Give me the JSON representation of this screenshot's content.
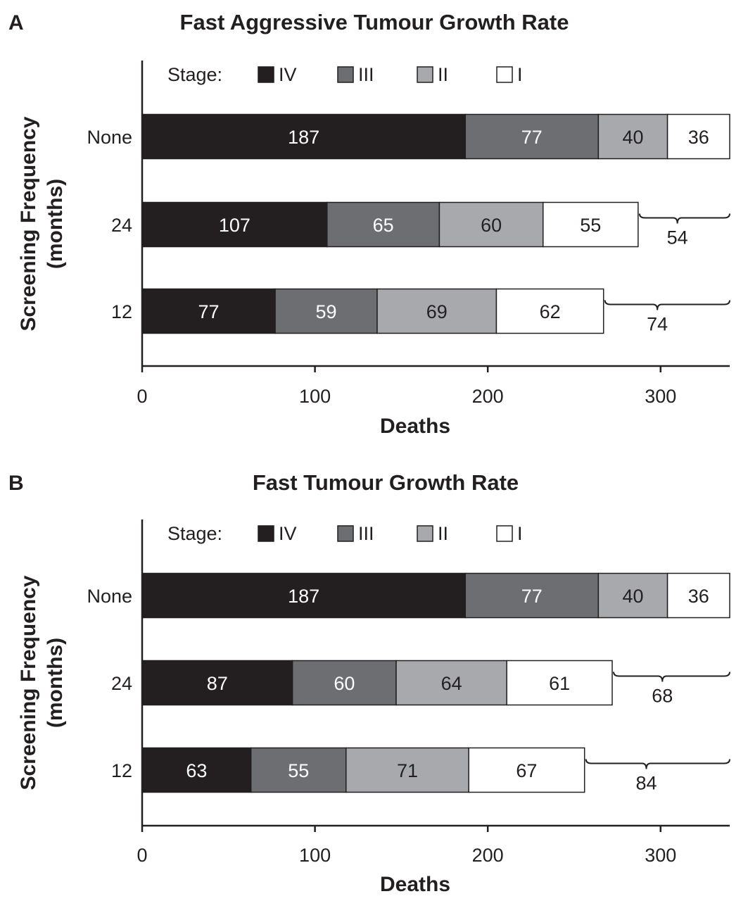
{
  "colors": {
    "IV": "#231f20",
    "III": "#6d6e71",
    "II": "#a7a9ac",
    "I": "#ffffff",
    "ink": "#231f20"
  },
  "chart_data": [
    {
      "type": "bar",
      "orientation": "horizontal",
      "stacked": true,
      "panel_label": "A",
      "title": "Fast Aggressive Tumour Growth Rate",
      "xlabel": "Deaths",
      "ylabel": "Screening Frequency",
      "ylabel_sub": "(months)",
      "xlim": [
        0,
        340
      ],
      "xticks": [
        0,
        100,
        200,
        300
      ],
      "legend_title": "Stage:",
      "legend_position": "top-left",
      "categories": [
        "None",
        "24",
        "12"
      ],
      "series": [
        {
          "name": "IV",
          "values": [
            187,
            107,
            77
          ]
        },
        {
          "name": "III",
          "values": [
            77,
            65,
            59
          ]
        },
        {
          "name": "II",
          "values": [
            40,
            60,
            69
          ]
        },
        {
          "name": "I",
          "values": [
            36,
            55,
            62
          ]
        }
      ],
      "differences": [
        null,
        "54",
        "74"
      ]
    },
    {
      "type": "bar",
      "orientation": "horizontal",
      "stacked": true,
      "panel_label": "B",
      "title": "Fast Tumour Growth Rate",
      "xlabel": "Deaths",
      "ylabel": "Screening Frequency",
      "ylabel_sub": "(months)",
      "xlim": [
        0,
        340
      ],
      "xticks": [
        0,
        100,
        200,
        300
      ],
      "legend_title": "Stage:",
      "legend_position": "top-left",
      "categories": [
        "None",
        "24",
        "12"
      ],
      "series": [
        {
          "name": "IV",
          "values": [
            187,
            87,
            63
          ]
        },
        {
          "name": "III",
          "values": [
            77,
            60,
            55
          ]
        },
        {
          "name": "II",
          "values": [
            40,
            64,
            71
          ]
        },
        {
          "name": "I",
          "values": [
            36,
            61,
            67
          ]
        }
      ],
      "differences": [
        null,
        "68",
        "84"
      ]
    }
  ]
}
